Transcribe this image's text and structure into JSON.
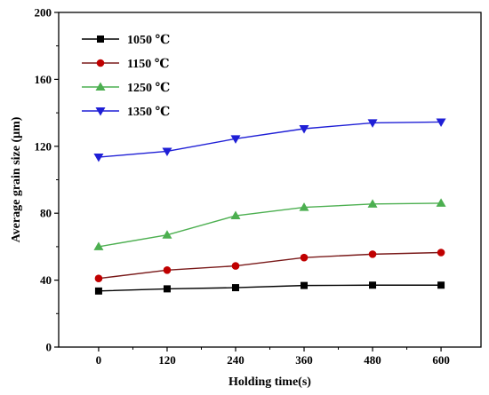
{
  "chart_data": {
    "type": "line",
    "xlabel": "Holding time(s)",
    "ylabel": "Average grain size (μm)",
    "x": [
      0,
      120,
      240,
      360,
      480,
      600
    ],
    "x_tick_labels": [
      "0",
      "120",
      "240",
      "360",
      "480",
      "600"
    ],
    "xlim": [
      -70,
      670
    ],
    "ylim": [
      0,
      200
    ],
    "y_ticks": [
      0,
      40,
      80,
      120,
      160,
      200
    ],
    "y_tick_labels": [
      "0",
      "40",
      "80",
      "120",
      "160",
      "200"
    ],
    "grid": false,
    "legend_position": "top-left",
    "series": [
      {
        "name": "1050 ℃",
        "color": "#000000",
        "marker": "square",
        "values": [
          33.5,
          34.8,
          35.5,
          36.8,
          37.0,
          37.0
        ]
      },
      {
        "name": "1150 ℃",
        "color": "#c00000",
        "line_color": "#7a1a1a",
        "marker": "circle",
        "values": [
          41.0,
          46.0,
          48.5,
          53.5,
          55.5,
          56.5
        ]
      },
      {
        "name": "1250 ℃",
        "color": "#4caf50",
        "marker": "triangle-up",
        "values": [
          60.0,
          67.0,
          78.5,
          83.5,
          85.5,
          86.0
        ]
      },
      {
        "name": "1350 ℃",
        "color": "#1f1fd6",
        "marker": "triangle-down",
        "values": [
          113.5,
          117.0,
          124.5,
          130.5,
          134.0,
          134.5
        ]
      }
    ]
  }
}
